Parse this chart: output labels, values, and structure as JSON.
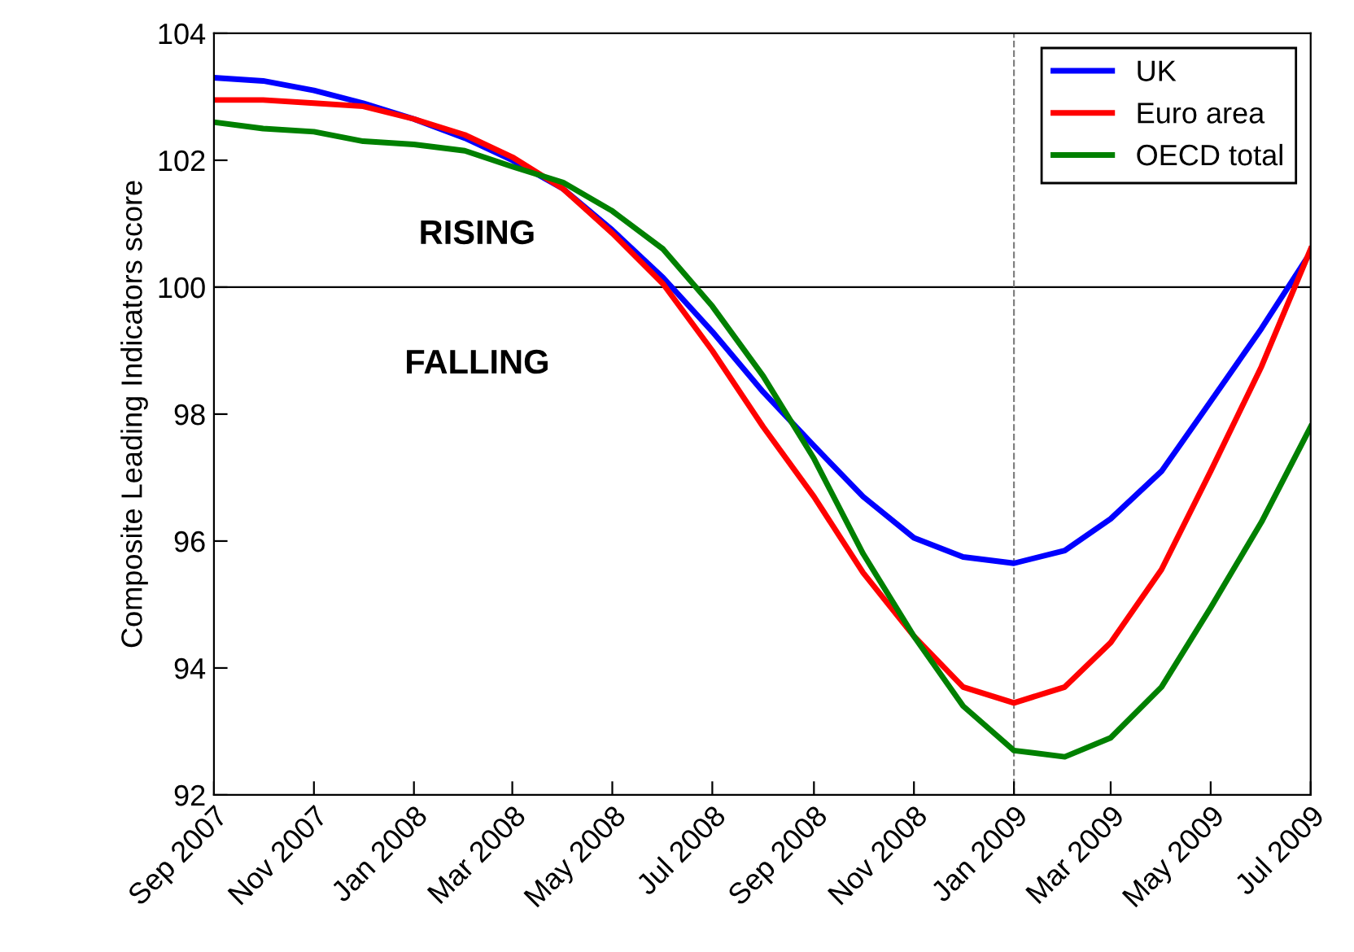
{
  "chart_data": {
    "type": "line",
    "ylabel": "Composite Leading Indicators score",
    "x": [
      "2007-09",
      "2007-10",
      "2007-11",
      "2007-12",
      "2008-01",
      "2008-02",
      "2008-03",
      "2008-04",
      "2008-05",
      "2008-06",
      "2008-07",
      "2008-08",
      "2008-09",
      "2008-10",
      "2008-11",
      "2008-12",
      "2009-01",
      "2009-02",
      "2009-03",
      "2009-04",
      "2009-05",
      "2009-06",
      "2009-07"
    ],
    "series": [
      {
        "name": "UK",
        "color": "#0000ff",
        "values": [
          103.3,
          103.25,
          103.1,
          102.9,
          102.65,
          102.35,
          102.0,
          101.55,
          100.9,
          100.15,
          99.3,
          98.35,
          97.5,
          96.7,
          96.05,
          95.75,
          95.65,
          95.85,
          96.35,
          97.1,
          98.2,
          99.35,
          100.55
        ]
      },
      {
        "name": "Euro area",
        "color": "#ff0000",
        "values": [
          102.95,
          102.95,
          102.9,
          102.85,
          102.65,
          102.4,
          102.05,
          101.55,
          100.85,
          100.05,
          99.0,
          97.8,
          96.7,
          95.5,
          94.5,
          93.7,
          93.45,
          93.7,
          94.4,
          95.55,
          97.1,
          98.75,
          100.6
        ]
      },
      {
        "name": "OECD total",
        "color": "#008000",
        "values": [
          102.6,
          102.5,
          102.45,
          102.3,
          102.25,
          102.15,
          101.9,
          101.65,
          101.2,
          100.6,
          99.7,
          98.6,
          97.3,
          95.8,
          94.5,
          93.4,
          92.7,
          92.6,
          92.9,
          93.7,
          94.95,
          96.3,
          97.8
        ]
      }
    ],
    "xlim": [
      "2007-09",
      "2009-07"
    ],
    "xticks": [
      {
        "value": "2007-09",
        "label": "Sep 2007"
      },
      {
        "value": "2007-11",
        "label": "Nov 2007"
      },
      {
        "value": "2008-01",
        "label": "Jan 2008"
      },
      {
        "value": "2008-03",
        "label": "Mar 2008"
      },
      {
        "value": "2008-05",
        "label": "May 2008"
      },
      {
        "value": "2008-07",
        "label": "Jul 2008"
      },
      {
        "value": "2008-09",
        "label": "Sep 2008"
      },
      {
        "value": "2008-11",
        "label": "Nov 2008"
      },
      {
        "value": "2009-01",
        "label": "Jan 2009"
      },
      {
        "value": "2009-03",
        "label": "Mar 2009"
      },
      {
        "value": "2009-05",
        "label": "May 2009"
      },
      {
        "value": "2009-07",
        "label": "Jul 2009"
      }
    ],
    "ylim": [
      92,
      104
    ],
    "yticks": [
      92,
      94,
      96,
      98,
      100,
      102,
      104
    ],
    "ref_lines": [
      {
        "axis": "y",
        "value": 100,
        "color": "#000000",
        "line_style": "solid"
      },
      {
        "axis": "x",
        "value": "2009-01",
        "color": "#808080",
        "line_style": "dashed"
      }
    ],
    "annotations": [
      "RISING",
      "FALLING"
    ],
    "legend": "top right",
    "grid": false,
    "marker": "none",
    "line_style": "solid"
  }
}
